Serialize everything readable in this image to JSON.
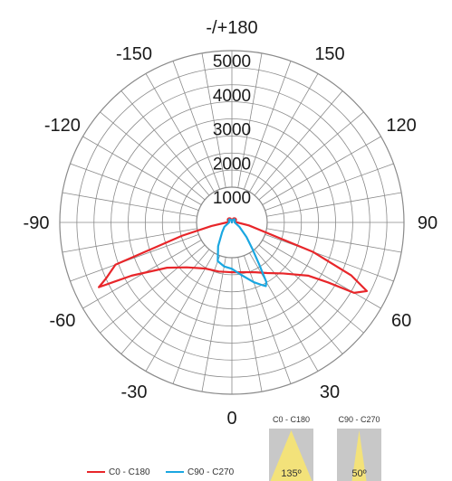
{
  "chart_data": {
    "type": "polar-line",
    "angle_labels": [
      {
        "angle": 180,
        "text": "-/+180"
      },
      {
        "angle": -150,
        "text": "-150"
      },
      {
        "angle": 150,
        "text": "150"
      },
      {
        "angle": -120,
        "text": "-120"
      },
      {
        "angle": 120,
        "text": "120"
      },
      {
        "angle": -90,
        "text": "-90"
      },
      {
        "angle": 90,
        "text": "90"
      },
      {
        "angle": -60,
        "text": "-60"
      },
      {
        "angle": 60,
        "text": "60"
      },
      {
        "angle": -30,
        "text": "-30"
      },
      {
        "angle": 30,
        "text": "30"
      },
      {
        "angle": 0,
        "text": "0"
      }
    ],
    "radial_labels": [
      "1000",
      "2000",
      "3000",
      "4000",
      "5000"
    ],
    "radial_range": [
      0,
      5000
    ],
    "radial_start": 1000,
    "ring_values": [
      1000,
      1500,
      2000,
      2500,
      3000,
      3500,
      4000,
      4500,
      5000
    ],
    "spoke_step_deg": 10,
    "series": [
      {
        "name": "C0 - C180",
        "color": "#e8262a",
        "points": [
          [
            -180,
            0
          ],
          [
            -170,
            80
          ],
          [
            -160,
            120
          ],
          [
            -150,
            140
          ],
          [
            -140,
            150
          ],
          [
            -130,
            150
          ],
          [
            -120,
            140
          ],
          [
            -110,
            100
          ],
          [
            -100,
            100
          ],
          [
            -90,
            150
          ],
          [
            -80,
            600
          ],
          [
            -75,
            1500
          ],
          [
            -70,
            3600
          ],
          [
            -66,
            4000
          ],
          [
            -64,
            4300
          ],
          [
            -62,
            3300
          ],
          [
            -55,
            2300
          ],
          [
            -45,
            1850
          ],
          [
            -30,
            1550
          ],
          [
            -15,
            1480
          ],
          [
            0,
            1450
          ],
          [
            15,
            1500
          ],
          [
            25,
            1600
          ],
          [
            35,
            1800
          ],
          [
            45,
            2100
          ],
          [
            55,
            2700
          ],
          [
            58,
            3300
          ],
          [
            60,
            4100
          ],
          [
            63,
            4400
          ],
          [
            66,
            3800
          ],
          [
            70,
            2500
          ],
          [
            80,
            500
          ],
          [
            90,
            150
          ],
          [
            100,
            100
          ],
          [
            110,
            100
          ],
          [
            120,
            140
          ],
          [
            130,
            150
          ],
          [
            140,
            150
          ],
          [
            150,
            140
          ],
          [
            160,
            120
          ],
          [
            170,
            80
          ],
          [
            180,
            0
          ]
        ]
      },
      {
        "name": "C90 - C270",
        "color": "#1aa7e1",
        "points": [
          [
            -180,
            0
          ],
          [
            -160,
            80
          ],
          [
            -140,
            120
          ],
          [
            -120,
            100
          ],
          [
            -90,
            80
          ],
          [
            -60,
            250
          ],
          [
            -45,
            400
          ],
          [
            -30,
            800
          ],
          [
            -20,
            1200
          ],
          [
            -10,
            1300
          ],
          [
            0,
            1350
          ],
          [
            10,
            1550
          ],
          [
            20,
            1850
          ],
          [
            25,
            2000
          ],
          [
            28,
            2100
          ],
          [
            30,
            2000
          ],
          [
            33,
            1450
          ],
          [
            38,
            950
          ],
          [
            45,
            600
          ],
          [
            60,
            250
          ],
          [
            90,
            80
          ],
          [
            120,
            100
          ],
          [
            140,
            120
          ],
          [
            160,
            80
          ],
          [
            180,
            0
          ]
        ]
      }
    ],
    "legend": [
      {
        "label": "C0 - C180",
        "color": "#e8262a"
      },
      {
        "label": "C90 - C270",
        "color": "#1aa7e1"
      }
    ],
    "beam_icons": [
      {
        "title": "C0 - C180",
        "value": "135º"
      },
      {
        "title": "C90 - C270",
        "value": "50º"
      }
    ]
  }
}
